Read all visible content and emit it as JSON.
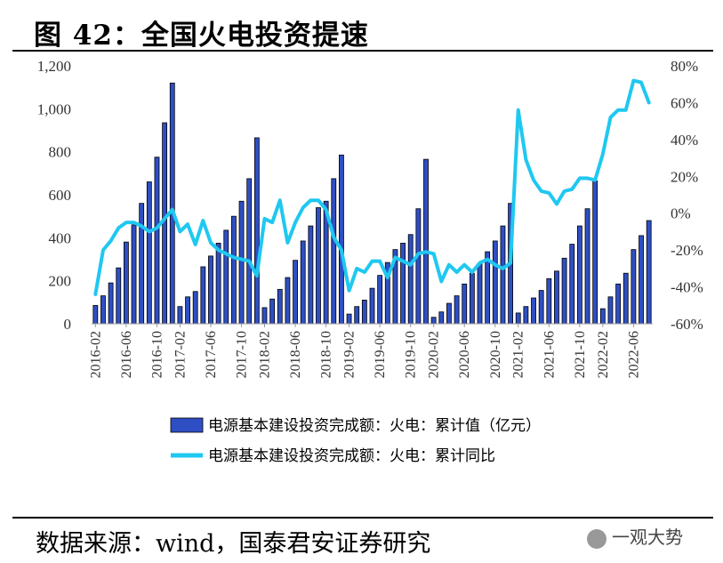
{
  "header": {
    "title": "图 42：全国火电投资提速"
  },
  "footer": {
    "source": "数据来源：wind，国泰君安证券研究",
    "watermark": "一观大势"
  },
  "chart_data": {
    "type": "bar+line",
    "title": "全国火电投资提速",
    "categories": [
      "2016-02",
      "2016-03",
      "2016-04",
      "2016-05",
      "2016-06",
      "2016-07",
      "2016-08",
      "2016-09",
      "2016-10",
      "2016-11",
      "2016-12",
      "2017-02",
      "2017-03",
      "2017-04",
      "2017-05",
      "2017-06",
      "2017-07",
      "2017-08",
      "2017-09",
      "2017-10",
      "2017-11",
      "2017-12",
      "2018-02",
      "2018-03",
      "2018-04",
      "2018-05",
      "2018-06",
      "2018-07",
      "2018-08",
      "2018-09",
      "2018-10",
      "2018-11",
      "2018-12",
      "2019-02",
      "2019-03",
      "2019-04",
      "2019-05",
      "2019-06",
      "2019-07",
      "2019-08",
      "2019-09",
      "2019-10",
      "2019-11",
      "2019-12",
      "2020-02",
      "2020-03",
      "2020-04",
      "2020-05",
      "2020-06",
      "2020-07",
      "2020-08",
      "2020-09",
      "2020-10",
      "2020-11",
      "2020-12",
      "2021-02",
      "2021-03",
      "2021-04",
      "2021-05",
      "2021-06",
      "2021-07",
      "2021-08",
      "2021-09",
      "2021-10",
      "2021-11",
      "2021-12",
      "2022-02",
      "2022-03",
      "2022-04",
      "2022-05",
      "2022-06",
      "2022-07",
      "2022-08"
    ],
    "x_tick_labels": [
      "2016-02",
      "2016-06",
      "2016-10",
      "2017-02",
      "2017-06",
      "2017-10",
      "2018-02",
      "2018-06",
      "2018-10",
      "2019-02",
      "2019-06",
      "2019-10",
      "2020-02",
      "2020-06",
      "2020-10",
      "2021-02",
      "2021-06",
      "2021-10",
      "2022-02",
      "2022-06"
    ],
    "series": [
      {
        "name": "电源基本建设投资完成额：火电：累计值（亿元）",
        "type": "bar",
        "axis": "left",
        "color": "#2E4FC4",
        "values": [
          85,
          130,
          190,
          260,
          380,
          460,
          560,
          660,
          775,
          935,
          1120,
          80,
          125,
          150,
          265,
          315,
          375,
          435,
          500,
          570,
          675,
          865,
          75,
          115,
          160,
          215,
          295,
          385,
          455,
          540,
          570,
          675,
          785,
          45,
          80,
          110,
          165,
          225,
          285,
          345,
          375,
          415,
          535,
          765,
          30,
          55,
          95,
          130,
          185,
          235,
          280,
          335,
          385,
          455,
          560,
          50,
          80,
          120,
          155,
          210,
          245,
          305,
          370,
          455,
          535,
          665,
          70,
          125,
          185,
          235,
          345,
          410,
          480
        ]
      },
      {
        "name": "电源基本建设投资完成额：火电：累计同比",
        "type": "line",
        "axis": "right",
        "color": "#1FC8F0",
        "values": [
          -44,
          -20,
          -15,
          -8,
          -5,
          -5,
          -7,
          -10,
          -8,
          -3,
          2,
          -10,
          -6,
          -17,
          -4,
          -16,
          -20,
          -22,
          -24,
          -25,
          -26,
          -34,
          -3,
          -5,
          7,
          -16,
          -5,
          3,
          7,
          7,
          2,
          -13,
          -20,
          -42,
          -30,
          -32,
          -26,
          -26,
          -35,
          -24,
          -26,
          -28,
          -22,
          -21,
          -22,
          -37,
          -28,
          -32,
          -28,
          -32,
          -27,
          -25,
          -28,
          -30,
          -27,
          56,
          29,
          18,
          12,
          11,
          5,
          12,
          13,
          19,
          19,
          18,
          32,
          52,
          56,
          56,
          72,
          71,
          60
        ]
      }
    ],
    "yleft": {
      "min": 0,
      "max": 1200,
      "ticks": [
        "0",
        "200",
        "400",
        "600",
        "800",
        "1,000",
        "1,200"
      ]
    },
    "yright": {
      "min": -60,
      "max": 80,
      "ticks": [
        "-60%",
        "-40%",
        "-20%",
        "0%",
        "20%",
        "40%",
        "60%",
        "80%"
      ]
    },
    "legend": {
      "position": "bottom",
      "bar_label": "电源基本建设投资完成额：火电：累计值（亿元）",
      "line_label": "电源基本建设投资完成额：火电：累计同比"
    }
  }
}
